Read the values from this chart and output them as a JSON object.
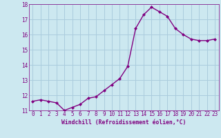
{
  "x": [
    0,
    1,
    2,
    3,
    4,
    5,
    6,
    7,
    8,
    9,
    10,
    11,
    12,
    13,
    14,
    15,
    16,
    17,
    18,
    19,
    20,
    21,
    22,
    23
  ],
  "y": [
    11.6,
    11.7,
    11.6,
    11.5,
    11.0,
    11.2,
    11.4,
    11.8,
    11.9,
    12.3,
    12.7,
    13.1,
    13.9,
    16.4,
    17.3,
    17.8,
    17.5,
    17.2,
    16.4,
    16.0,
    15.7,
    15.6,
    15.6,
    15.7
  ],
  "line_color": "#800080",
  "marker": "D",
  "marker_size": 2.0,
  "bg_color": "#cce8f0",
  "grid_color": "#aaccdd",
  "xlabel": "Windchill (Refroidissement éolien,°C)",
  "xlabel_color": "#800080",
  "tick_color": "#800080",
  "ylim": [
    11,
    18
  ],
  "xlim": [
    -0.5,
    23.5
  ],
  "yticks": [
    11,
    12,
    13,
    14,
    15,
    16,
    17,
    18
  ],
  "xticks": [
    0,
    1,
    2,
    3,
    4,
    5,
    6,
    7,
    8,
    9,
    10,
    11,
    12,
    13,
    14,
    15,
    16,
    17,
    18,
    19,
    20,
    21,
    22,
    23
  ],
  "linewidth": 1.0,
  "tick_fontsize": 5.5,
  "xlabel_fontsize": 5.8
}
